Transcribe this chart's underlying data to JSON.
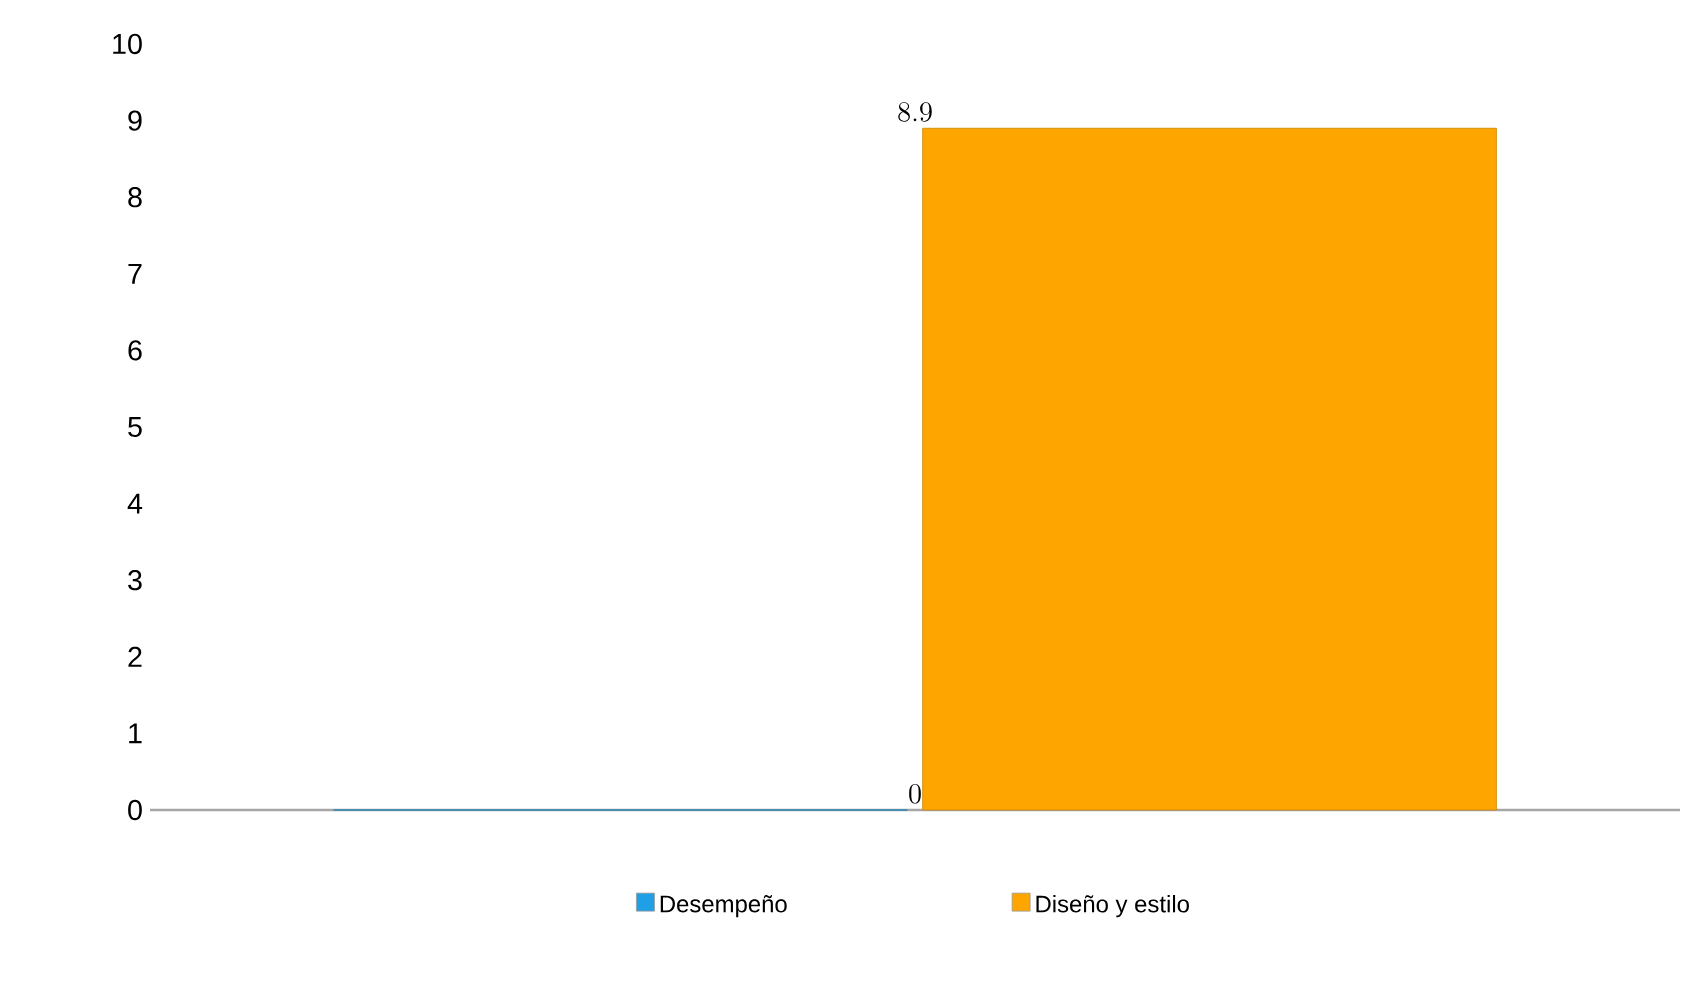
{
  "chart_data": {
    "type": "bar",
    "categories": [
      null
    ],
    "series": [
      {
        "name": "Desempeño",
        "color": "#1e9fe6",
        "values": [
          0
        ]
      },
      {
        "name": "Diseño y estilo",
        "color": "#ffa500",
        "values": [
          8.9
        ]
      }
    ],
    "ylim": [
      0,
      10
    ],
    "yticks": [
      0,
      1,
      2,
      3,
      4,
      5,
      6,
      7,
      8,
      9,
      10
    ],
    "data_labels": true,
    "legend": "bottom",
    "grid": false
  }
}
